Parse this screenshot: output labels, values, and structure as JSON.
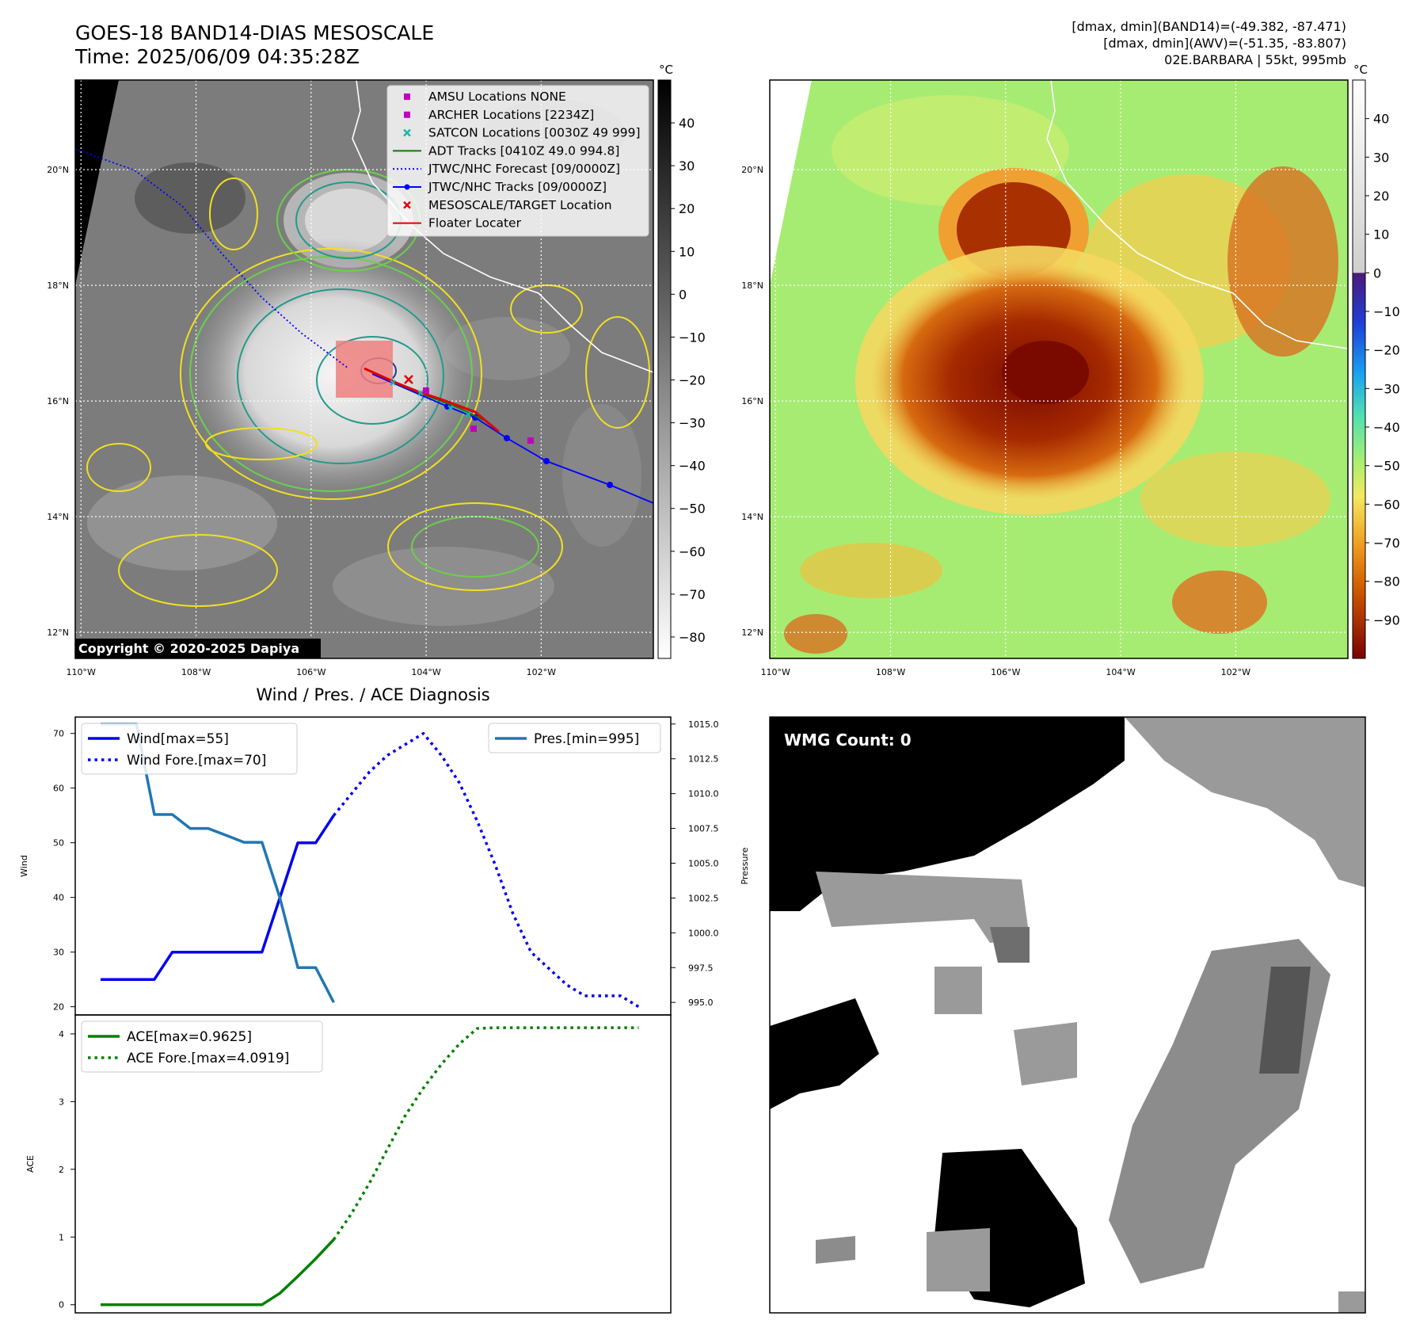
{
  "header": {
    "title_line1": "GOES-18 BAND14-DIAS MESOSCALE",
    "title_line2": "Time: 2025/06/09 04:35:28Z",
    "info_line1": "[dmax, dmin](BAND14)=(-49.382, -87.471)",
    "info_line2": "[dmax, dmin](AWV)=(-51.35, -83.807)",
    "info_line3": "02E.BARBARA | 55kt, 995mb"
  },
  "ir_panel": {
    "lat_labels": [
      "20°N",
      "18°N",
      "16°N",
      "14°N",
      "12°N"
    ],
    "lon_labels": [
      "110°W",
      "108°W",
      "106°W",
      "104°W",
      "102°W"
    ],
    "lat_values": [
      20,
      18,
      16,
      14,
      12
    ],
    "lon_values": [
      -110,
      -108,
      -106,
      -104,
      -102
    ],
    "extent": {
      "lon": [
        -110.1,
        -100.05
      ],
      "lat": [
        11.55,
        21.55
      ]
    },
    "copyright": "Copyright © 2020-2025 Dapiya",
    "contour_colors": {
      "yellow": "#f0e020",
      "lightgreen": "#6ccf4c",
      "teal": "#239a8b",
      "navy": "#283a8c"
    },
    "legend": [
      {
        "label": "AMSU Locations NONE",
        "symbol": "square",
        "color": "#c000c0"
      },
      {
        "label": "ARCHER Locations [2234Z]",
        "symbol": "square",
        "color": "#c000c0"
      },
      {
        "label": "SATCON Locations [0030Z 49 999]",
        "symbol": "x",
        "color": "#17b8a6"
      },
      {
        "label": "ADT Tracks [0410Z 49.0 994.8]",
        "symbol": "line",
        "color": "#0a7a0a"
      },
      {
        "label": "JTWC/NHC Forecast [09/0000Z]",
        "symbol": "dotted",
        "color": "#0000ff"
      },
      {
        "label": "JTWC/NHC Tracks [09/0000Z]",
        "symbol": "line-dot",
        "color": "#0000ff"
      },
      {
        "label": "MESOSCALE/TARGET Location",
        "symbol": "x",
        "color": "#e00000"
      },
      {
        "label": "Floater Locater",
        "symbol": "line",
        "color": "#e00000"
      }
    ],
    "colorbar": {
      "unit": "°C",
      "ticks": [
        "40",
        "30",
        "20",
        "10",
        "0",
        "−10",
        "−20",
        "−30",
        "−40",
        "−50",
        "−60",
        "−70",
        "−80"
      ],
      "tick_values": [
        40,
        30,
        20,
        10,
        0,
        -10,
        -20,
        -30,
        -40,
        -50,
        -60,
        -70,
        -80
      ],
      "range": [
        -85,
        50
      ]
    }
  },
  "awv_panel": {
    "lat_labels": [
      "20°N",
      "18°N",
      "16°N",
      "14°N",
      "12°N"
    ],
    "lon_labels": [
      "110°W",
      "108°W",
      "106°W",
      "104°W",
      "102°W"
    ],
    "colorbar": {
      "unit": "°C",
      "ticks": [
        "40",
        "30",
        "20",
        "10",
        "0",
        "−10",
        "−20",
        "−30",
        "−40",
        "−50",
        "−60",
        "−70",
        "−80",
        "−90"
      ],
      "tick_values": [
        40,
        30,
        20,
        10,
        0,
        -10,
        -20,
        -30,
        -40,
        -50,
        -60,
        -70,
        -80,
        -90
      ],
      "range": [
        -100,
        50
      ]
    }
  },
  "wmg_panel": {
    "label": "WMG Count: 0"
  },
  "chart_data": [
    {
      "type": "line",
      "title": "Wind / Pres. / ACE Diagnosis",
      "ylabel": "Wind",
      "ylabel_right": "Pressure",
      "ylim": [
        18.5,
        73
      ],
      "ylim_right": [
        994.1,
        1015.5
      ],
      "y_ticks": [
        20,
        30,
        40,
        50,
        60,
        70
      ],
      "y_ticks_right": [
        "995.0",
        "997.5",
        "1000.0",
        "1002.5",
        "1005.0",
        "1007.5",
        "1010.0",
        "1012.5",
        "1015.0"
      ],
      "x_range": [
        0,
        31
      ],
      "series": [
        {
          "name": "Wind[max=55]",
          "color": "#0000ee",
          "style": "solid",
          "axis": "left",
          "x": [
            0,
            1,
            2,
            3,
            4,
            5,
            6,
            7,
            8,
            9,
            10,
            11,
            12,
            13
          ],
          "values": [
            25,
            25,
            25,
            25,
            30,
            30,
            30,
            30,
            30,
            30,
            40,
            50,
            50,
            55
          ]
        },
        {
          "name": "Wind Fore.[max=70]",
          "color": "#0000ee",
          "style": "dotted",
          "axis": "left",
          "x": [
            13,
            14,
            15,
            16,
            17,
            18,
            19,
            20,
            21,
            22,
            23,
            24,
            25,
            26,
            27,
            28,
            29,
            30
          ],
          "values": [
            55,
            59,
            63,
            66,
            68,
            70,
            66,
            61,
            54,
            46,
            37,
            30,
            27,
            24,
            22,
            22,
            22,
            20
          ]
        },
        {
          "name": "Pres.[min=995]",
          "color": "#1f77b4",
          "style": "solid",
          "axis": "right",
          "x": [
            0,
            1,
            2,
            3,
            4,
            5,
            6,
            7,
            8,
            9,
            10,
            11,
            12,
            13
          ],
          "values": [
            1015,
            1015,
            1015,
            1008.5,
            1008.5,
            1007.5,
            1007.5,
            1007,
            1006.5,
            1006.5,
            1002.5,
            997.5,
            997.5,
            995
          ]
        }
      ]
    },
    {
      "type": "line",
      "ylabel": "ACE",
      "ylim": [
        -0.12,
        4.28
      ],
      "y_ticks": [
        0,
        1,
        2,
        3,
        4
      ],
      "x_range": [
        0,
        31
      ],
      "series": [
        {
          "name": "ACE[max=0.9625]",
          "color": "#008000",
          "style": "solid",
          "x": [
            0,
            1,
            2,
            3,
            4,
            5,
            6,
            7,
            8,
            9,
            10,
            11,
            12,
            13
          ],
          "values": [
            0,
            0,
            0,
            0,
            0,
            0,
            0,
            0,
            0,
            0,
            0.17,
            0.42,
            0.68,
            0.9625
          ]
        },
        {
          "name": "ACE Fore.[max=4.0919]",
          "color": "#008000",
          "style": "dotted",
          "x": [
            13,
            14,
            15,
            16,
            17,
            18,
            19,
            20,
            21,
            22,
            23,
            24,
            25,
            26,
            27,
            28,
            29,
            30
          ],
          "values": [
            0.9625,
            1.35,
            1.8,
            2.3,
            2.8,
            3.2,
            3.55,
            3.85,
            4.08,
            4.0919,
            4.0919,
            4.0919,
            4.0919,
            4.0919,
            4.0919,
            4.0919,
            4.0919,
            4.0919
          ]
        }
      ]
    }
  ]
}
